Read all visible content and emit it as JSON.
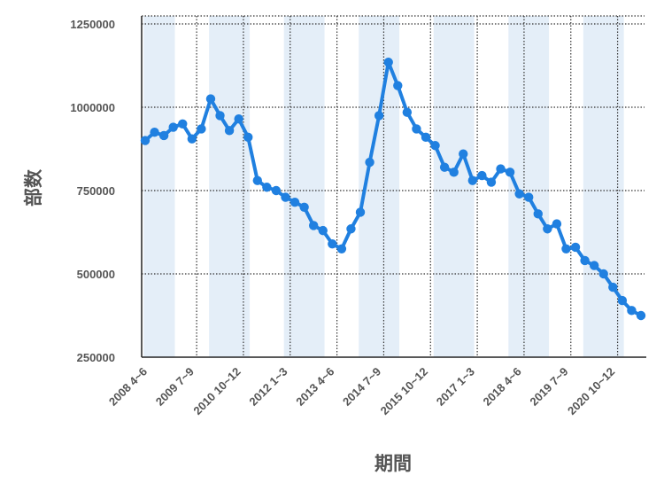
{
  "chart_data": {
    "type": "line",
    "title": "",
    "xlabel": "期間",
    "ylabel": "部数",
    "ylim": [
      250000,
      1250000
    ],
    "y_ticks": [
      250000,
      500000,
      750000,
      1000000,
      1250000
    ],
    "y_tick_labels": [
      "250000",
      "500000",
      "750000",
      "1000000",
      "1250000"
    ],
    "x_tick_labels": [
      "2008 4~6",
      "2009 7~9",
      "2010 10~12",
      "2012 1~3",
      "2013 4~6",
      "2014 7~9",
      "2015 10~12",
      "2017 1~3",
      "2018 4~6",
      "2019 7~9",
      "2020 10~12"
    ],
    "grid": true,
    "alternating_year_bands": true,
    "line_color": "#2080e0",
    "band_color": "#e4eef8",
    "series": [
      {
        "values": [
          900000,
          925000,
          915000,
          940000,
          950000,
          905000,
          935000,
          1025000,
          975000,
          930000,
          965000,
          910000,
          780000,
          760000,
          750000,
          730000,
          715000,
          700000,
          645000,
          630000,
          590000,
          575000,
          635000,
          685000,
          835000,
          975000,
          1135000,
          1065000,
          985000,
          935000,
          910000,
          885000,
          820000,
          805000,
          860000,
          780000,
          795000,
          775000,
          815000,
          805000,
          740000,
          730000,
          680000,
          635000,
          650000,
          575000,
          580000,
          540000,
          525000,
          500000,
          460000,
          420000,
          390000,
          375000
        ]
      }
    ]
  }
}
